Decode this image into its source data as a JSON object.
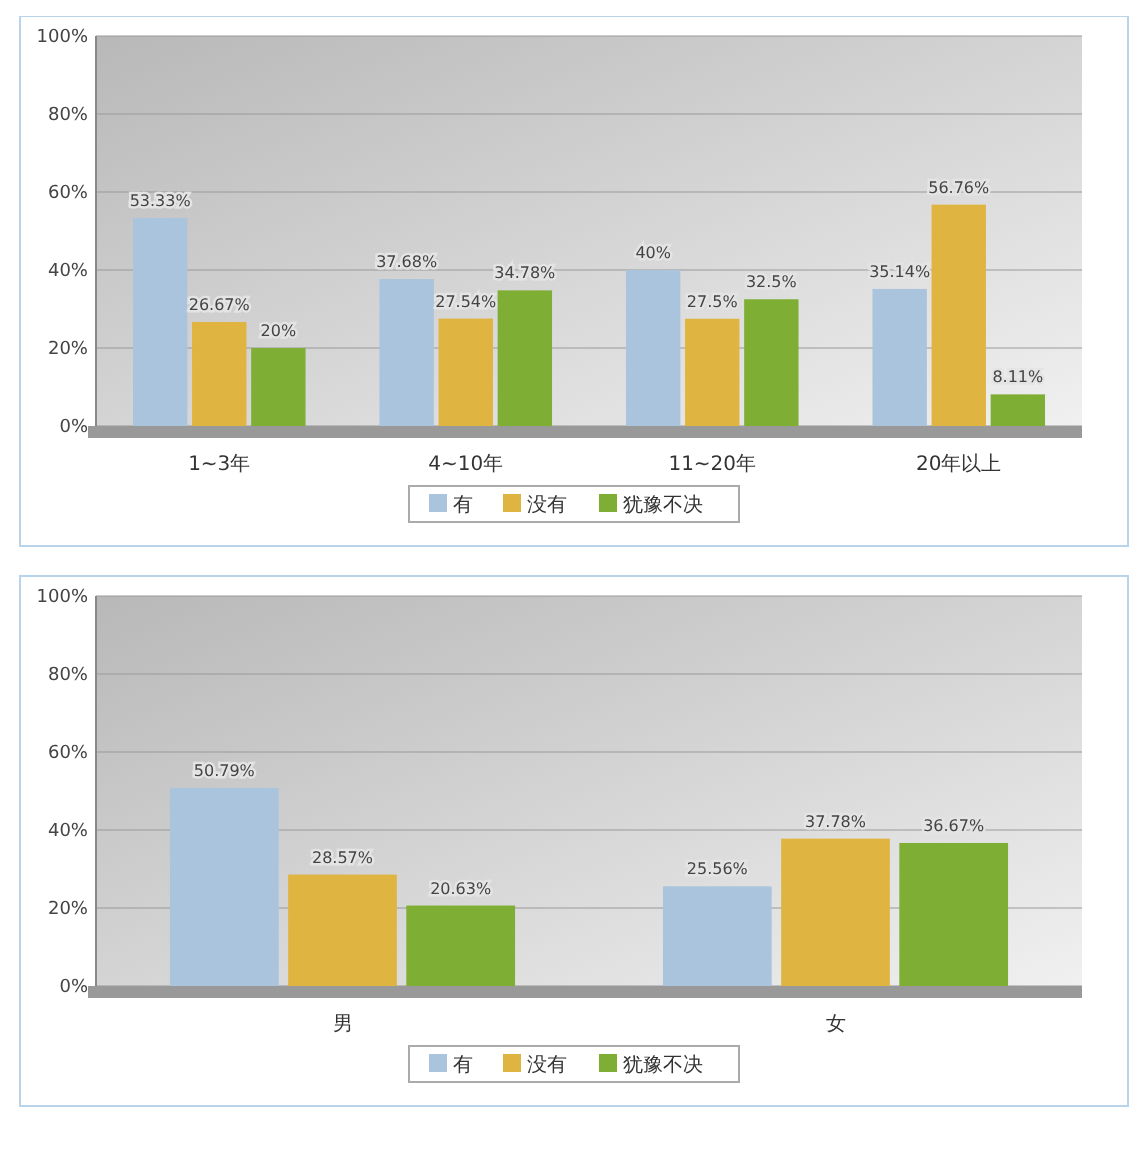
{
  "chart_data": [
    {
      "type": "bar",
      "categories": [
        "1~3年",
        "4~10年",
        "11~20年",
        "20年以上"
      ],
      "series": [
        {
          "name": "有",
          "color": "#a9c4dc",
          "values": [
            53.33,
            37.68,
            40,
            35.14
          ],
          "value_labels": [
            "53.33%",
            "37.68%",
            "40%",
            "35.14%"
          ]
        },
        {
          "name": "没有",
          "color": "#e0b441",
          "values": [
            26.67,
            27.54,
            27.5,
            56.76
          ],
          "value_labels": [
            "26.67%",
            "27.54%",
            "27.5%",
            "56.76%"
          ]
        },
        {
          "name": "犹豫不决",
          "color": "#7fae34",
          "values": [
            20,
            34.78,
            32.5,
            8.11
          ],
          "value_labels": [
            "20%",
            "34.78%",
            "32.5%",
            "8.11%"
          ]
        }
      ],
      "ylim": [
        0,
        100
      ],
      "yticks": [
        {
          "value": 0,
          "label": "0%"
        },
        {
          "value": 20,
          "label": "20%"
        },
        {
          "value": 40,
          "label": "40%"
        },
        {
          "value": 60,
          "label": "60%"
        },
        {
          "value": 80,
          "label": "80%"
        },
        {
          "value": 100,
          "label": "100%"
        }
      ],
      "grid": "y",
      "legend": "bottom"
    },
    {
      "type": "bar",
      "categories": [
        "男",
        "女"
      ],
      "series": [
        {
          "name": "有",
          "color": "#a9c4dc",
          "values": [
            50.79,
            25.56
          ],
          "value_labels": [
            "50.79%",
            "25.56%"
          ]
        },
        {
          "name": "没有",
          "color": "#e0b441",
          "values": [
            28.57,
            37.78
          ],
          "value_labels": [
            "28.57%",
            "37.78%"
          ]
        },
        {
          "name": "犹豫不决",
          "color": "#7fae34",
          "values": [
            20.63,
            36.67
          ],
          "value_labels": [
            "20.63%",
            "36.67%"
          ]
        }
      ],
      "ylim": [
        0,
        100
      ],
      "yticks": [
        {
          "value": 0,
          "label": "0%"
        },
        {
          "value": 20,
          "label": "20%"
        },
        {
          "value": 40,
          "label": "40%"
        },
        {
          "value": 60,
          "label": "60%"
        },
        {
          "value": 80,
          "label": "80%"
        },
        {
          "value": 100,
          "label": "100%"
        }
      ],
      "grid": "y",
      "legend": "bottom"
    }
  ]
}
